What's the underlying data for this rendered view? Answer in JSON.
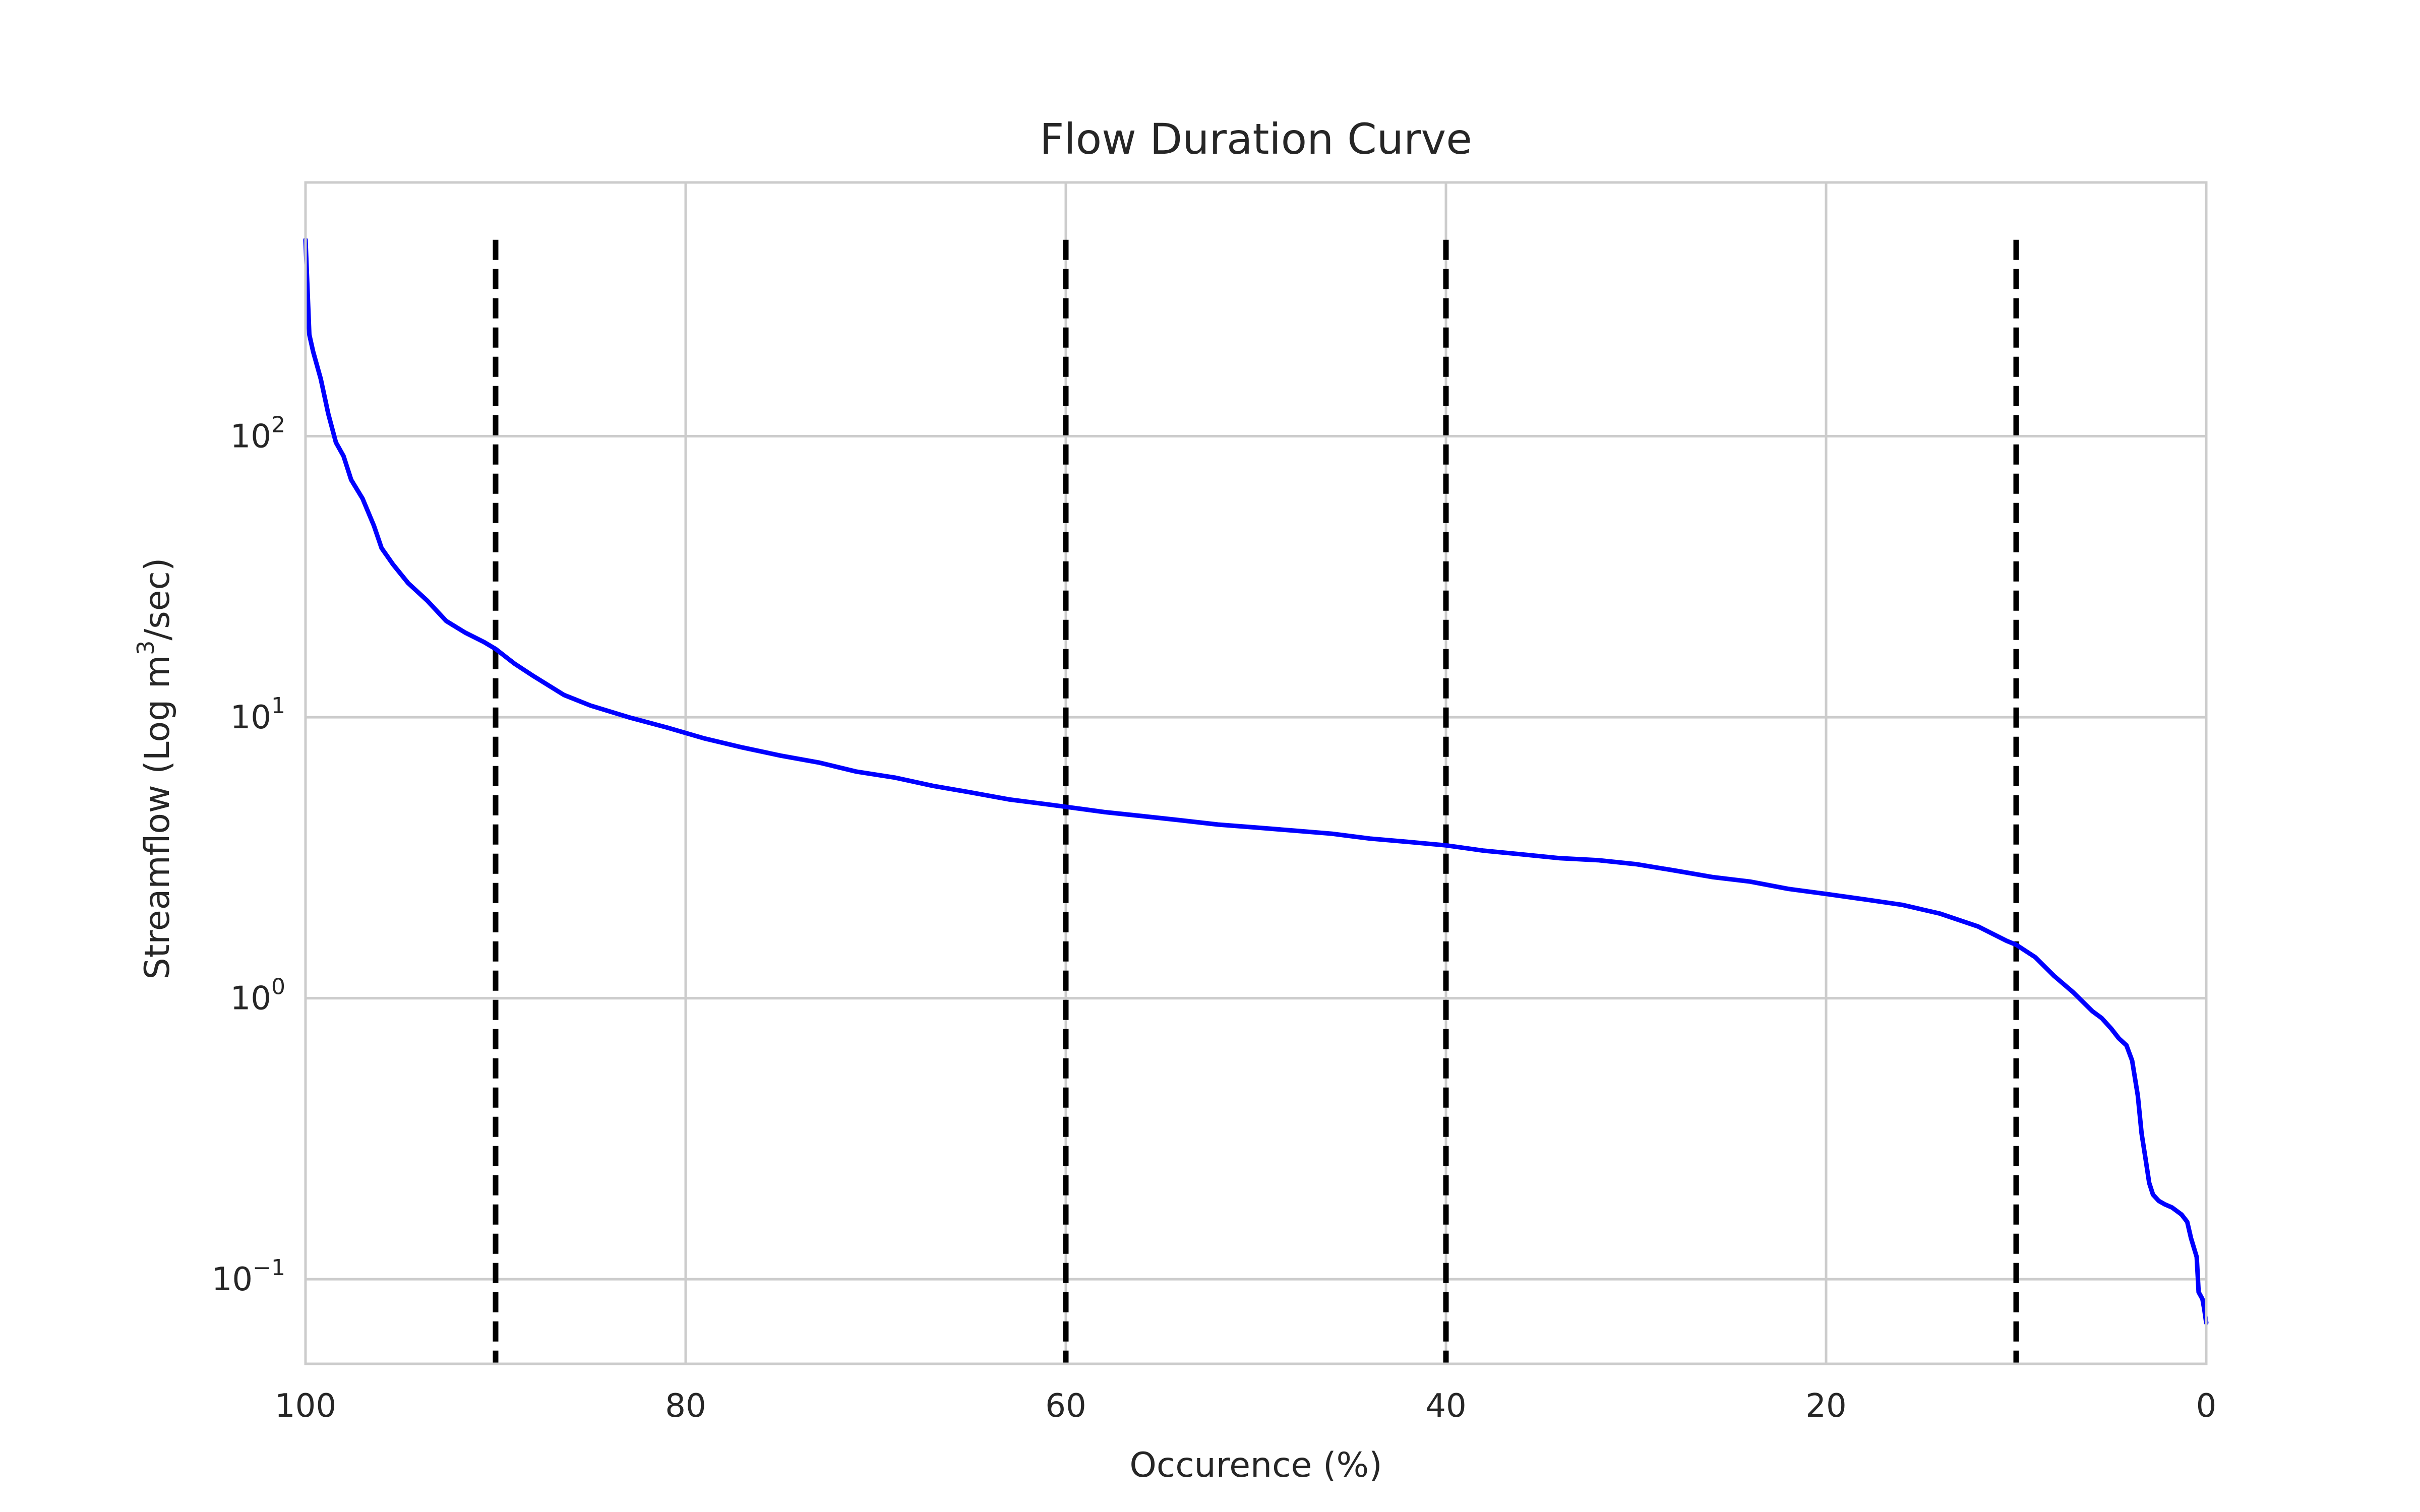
{
  "chart_data": {
    "type": "line",
    "title": "Flow Duration Curve",
    "xlabel": "Occurence (%)",
    "ylabel": "Streamflow (Log m³/sec)",
    "ylabel_parts": {
      "before": "Streamflow (Log m",
      "sup": "3",
      "after": "/sec)"
    },
    "xlim": [
      100,
      0
    ],
    "ylim": [
      0.05,
      800
    ],
    "yscale": "log",
    "x_ticks": [
      100,
      80,
      60,
      40,
      20,
      0
    ],
    "y_ticks": [
      {
        "value": 0.1,
        "base": "10",
        "exp": "−1"
      },
      {
        "value": 1,
        "base": "10",
        "exp": "0"
      },
      {
        "value": 10,
        "base": "10",
        "exp": "1"
      },
      {
        "value": 100,
        "base": "10",
        "exp": "2"
      }
    ],
    "grid": true,
    "series": [
      {
        "color": "#0000ff",
        "x": [
          100,
          99.8,
          99.6,
          99.2,
          98.8,
          98.4,
          98,
          97.6,
          97,
          96.4,
          96,
          95.4,
          94.6,
          93.6,
          92.6,
          91.6,
          90.6,
          90,
          89,
          88,
          86.4,
          85,
          83,
          81,
          79,
          77,
          75,
          73,
          71,
          69,
          67,
          65,
          63,
          61,
          60,
          58,
          56,
          54,
          52,
          50,
          48,
          46,
          44,
          42,
          40,
          38,
          36,
          34,
          32,
          30,
          28,
          26,
          24,
          22,
          20,
          18,
          16,
          14,
          12,
          10.5,
          10,
          9,
          8,
          7,
          6,
          5.5,
          5,
          4.6,
          4.2,
          3.9,
          3.6,
          3.4,
          3.2,
          3,
          2.8,
          2.5,
          2.2,
          1.8,
          1.3,
          1,
          0.8,
          0.5,
          0.4,
          0.2,
          0.1,
          0
        ],
        "y": [
          500,
          230,
          200,
          160,
          120,
          95,
          85,
          70,
          60,
          48,
          40,
          35,
          30,
          26,
          22,
          20,
          18.5,
          17.5,
          15.5,
          14,
          12,
          11,
          10,
          9.2,
          8.4,
          7.8,
          7.3,
          6.9,
          6.4,
          6.1,
          5.7,
          5.4,
          5.1,
          4.9,
          4.8,
          4.6,
          4.45,
          4.3,
          4.15,
          4.05,
          3.95,
          3.85,
          3.7,
          3.6,
          3.5,
          3.35,
          3.25,
          3.15,
          3.1,
          3,
          2.85,
          2.7,
          2.6,
          2.45,
          2.35,
          2.25,
          2.15,
          2,
          1.8,
          1.6,
          1.55,
          1.4,
          1.2,
          1.05,
          0.9,
          0.85,
          0.78,
          0.72,
          0.68,
          0.6,
          0.45,
          0.33,
          0.27,
          0.22,
          0.2,
          0.19,
          0.185,
          0.18,
          0.17,
          0.16,
          0.14,
          0.12,
          0.09,
          0.085,
          0.078,
          0.07
        ]
      }
    ],
    "vlines": {
      "x": [
        90,
        60,
        40,
        10
      ],
      "y_top": 500,
      "color": "#000000"
    }
  }
}
